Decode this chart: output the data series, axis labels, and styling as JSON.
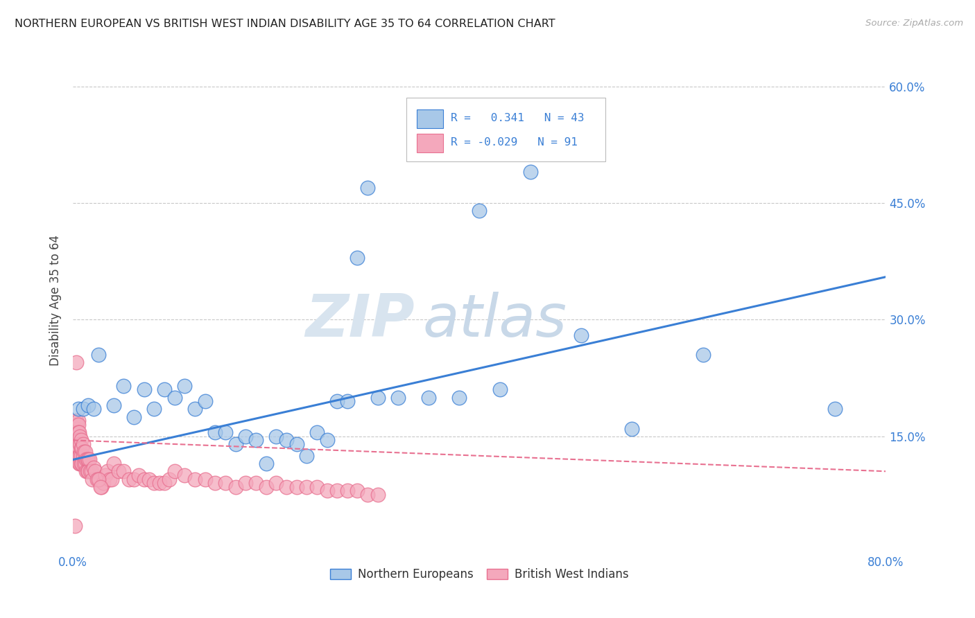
{
  "title": "NORTHERN EUROPEAN VS BRITISH WEST INDIAN DISABILITY AGE 35 TO 64 CORRELATION CHART",
  "source": "Source: ZipAtlas.com",
  "ylabel": "Disability Age 35 to 64",
  "xlim": [
    0.0,
    0.8
  ],
  "ylim": [
    0.0,
    0.65
  ],
  "xticks": [
    0.0,
    0.1,
    0.2,
    0.3,
    0.4,
    0.5,
    0.6,
    0.7,
    0.8
  ],
  "xtick_labels": [
    "0.0%",
    "",
    "",
    "",
    "",
    "",
    "",
    "",
    "80.0%"
  ],
  "ytick_labels_right": [
    "15.0%",
    "30.0%",
    "45.0%",
    "60.0%"
  ],
  "yticks_right": [
    0.15,
    0.3,
    0.45,
    0.6
  ],
  "blue_color": "#a8c8e8",
  "pink_color": "#f4a8bc",
  "blue_line_color": "#3a7fd5",
  "pink_line_color": "#e87090",
  "legend_r_blue": "0.341",
  "legend_n_blue": "43",
  "legend_r_pink": "-0.029",
  "legend_n_pink": "91",
  "legend_label_blue": "Northern Europeans",
  "legend_label_pink": "British West Indians",
  "watermark_zip": "ZIP",
  "watermark_atlas": "atlas",
  "blue_x": [
    0.025,
    0.04,
    0.05,
    0.06,
    0.07,
    0.08,
    0.09,
    0.1,
    0.11,
    0.12,
    0.13,
    0.14,
    0.15,
    0.16,
    0.17,
    0.18,
    0.19,
    0.2,
    0.21,
    0.22,
    0.23,
    0.24,
    0.25,
    0.26,
    0.27,
    0.3,
    0.32,
    0.35,
    0.38,
    0.42,
    0.5,
    0.55,
    0.62,
    0.75,
    0.005,
    0.01,
    0.015,
    0.02,
    0.28,
    0.29,
    0.4,
    0.45,
    0.48
  ],
  "blue_y": [
    0.255,
    0.19,
    0.215,
    0.175,
    0.21,
    0.185,
    0.21,
    0.2,
    0.215,
    0.185,
    0.195,
    0.155,
    0.155,
    0.14,
    0.15,
    0.145,
    0.115,
    0.15,
    0.145,
    0.14,
    0.125,
    0.155,
    0.145,
    0.195,
    0.195,
    0.2,
    0.2,
    0.2,
    0.2,
    0.21,
    0.28,
    0.16,
    0.255,
    0.185,
    0.185,
    0.185,
    0.19,
    0.185,
    0.38,
    0.47,
    0.44,
    0.49,
    0.545
  ],
  "pink_x": [
    0.002,
    0.003,
    0.003,
    0.003,
    0.004,
    0.004,
    0.004,
    0.004,
    0.005,
    0.005,
    0.005,
    0.005,
    0.005,
    0.005,
    0.006,
    0.006,
    0.006,
    0.006,
    0.006,
    0.007,
    0.007,
    0.007,
    0.007,
    0.008,
    0.008,
    0.008,
    0.008,
    0.009,
    0.009,
    0.01,
    0.01,
    0.011,
    0.011,
    0.012,
    0.012,
    0.013,
    0.013,
    0.014,
    0.014,
    0.015,
    0.015,
    0.016,
    0.017,
    0.018,
    0.019,
    0.02,
    0.022,
    0.024,
    0.026,
    0.028,
    0.03,
    0.032,
    0.034,
    0.036,
    0.038,
    0.04,
    0.045,
    0.05,
    0.055,
    0.06,
    0.065,
    0.07,
    0.075,
    0.08,
    0.085,
    0.09,
    0.095,
    0.1,
    0.11,
    0.12,
    0.13,
    0.14,
    0.15,
    0.16,
    0.17,
    0.18,
    0.19,
    0.2,
    0.21,
    0.22,
    0.23,
    0.24,
    0.25,
    0.26,
    0.27,
    0.28,
    0.29,
    0.3,
    0.025,
    0.027,
    0.003
  ],
  "pink_y": [
    0.035,
    0.17,
    0.16,
    0.155,
    0.16,
    0.165,
    0.155,
    0.145,
    0.17,
    0.165,
    0.155,
    0.145,
    0.135,
    0.125,
    0.155,
    0.145,
    0.135,
    0.125,
    0.115,
    0.15,
    0.14,
    0.125,
    0.115,
    0.145,
    0.135,
    0.125,
    0.115,
    0.135,
    0.115,
    0.14,
    0.125,
    0.13,
    0.115,
    0.13,
    0.115,
    0.12,
    0.105,
    0.12,
    0.105,
    0.12,
    0.105,
    0.12,
    0.105,
    0.105,
    0.095,
    0.11,
    0.105,
    0.095,
    0.095,
    0.085,
    0.09,
    0.1,
    0.105,
    0.095,
    0.095,
    0.115,
    0.105,
    0.105,
    0.095,
    0.095,
    0.1,
    0.095,
    0.095,
    0.09,
    0.09,
    0.09,
    0.095,
    0.105,
    0.1,
    0.095,
    0.095,
    0.09,
    0.09,
    0.085,
    0.09,
    0.09,
    0.085,
    0.09,
    0.085,
    0.085,
    0.085,
    0.085,
    0.08,
    0.08,
    0.08,
    0.08,
    0.075,
    0.075,
    0.095,
    0.085,
    0.245
  ],
  "blue_trend_x0": 0.0,
  "blue_trend_y0": 0.12,
  "blue_trend_x1": 0.8,
  "blue_trend_y1": 0.355,
  "pink_trend_x0": 0.0,
  "pink_trend_y0": 0.145,
  "pink_trend_x1": 0.8,
  "pink_trend_y1": 0.105
}
